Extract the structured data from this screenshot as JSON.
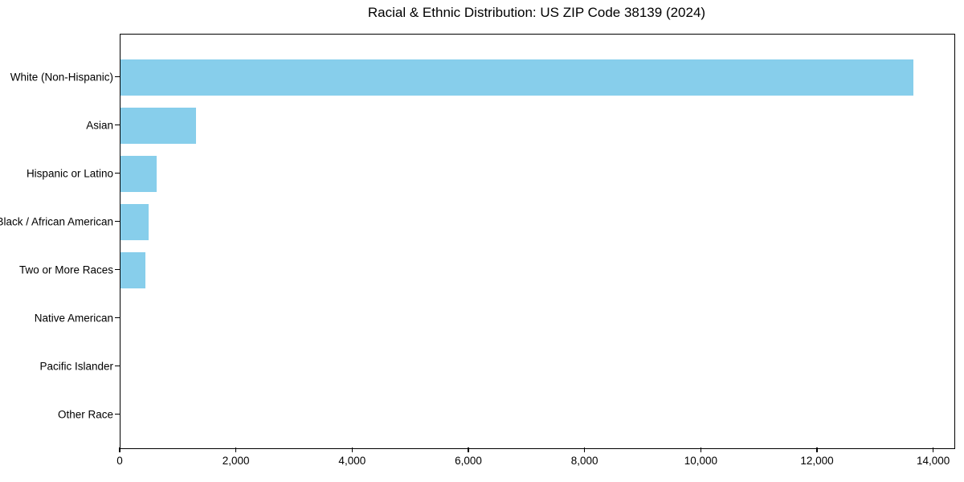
{
  "title": "Racial & Ethnic Distribution: US ZIP Code 38139 (2024)",
  "colors": {
    "bar": "#87CEEB",
    "axis": "#000000",
    "background": "#FFFFFF",
    "text": "#000000"
  },
  "chart_data": {
    "type": "bar",
    "orientation": "horizontal",
    "title": "Racial & Ethnic Distribution: US ZIP Code 38139 (2024)",
    "categories": [
      "White (Non-Hispanic)",
      "Asian",
      "Hispanic or Latino",
      "Black / African American",
      "Two or More Races",
      "Native American",
      "Pacific Islander",
      "Other Race"
    ],
    "values": [
      13640,
      1300,
      620,
      480,
      430,
      0,
      0,
      0
    ],
    "xlabel": "",
    "ylabel": "",
    "xlim": [
      0,
      14350
    ],
    "x_ticks": [
      0,
      2000,
      4000,
      6000,
      8000,
      10000,
      12000,
      14000
    ],
    "x_tick_labels": [
      "0",
      "2,000",
      "4,000",
      "6,000",
      "8,000",
      "10,000",
      "12,000",
      "14,000"
    ],
    "grid": false,
    "legend": null,
    "bar_color": "#87CEEB"
  }
}
